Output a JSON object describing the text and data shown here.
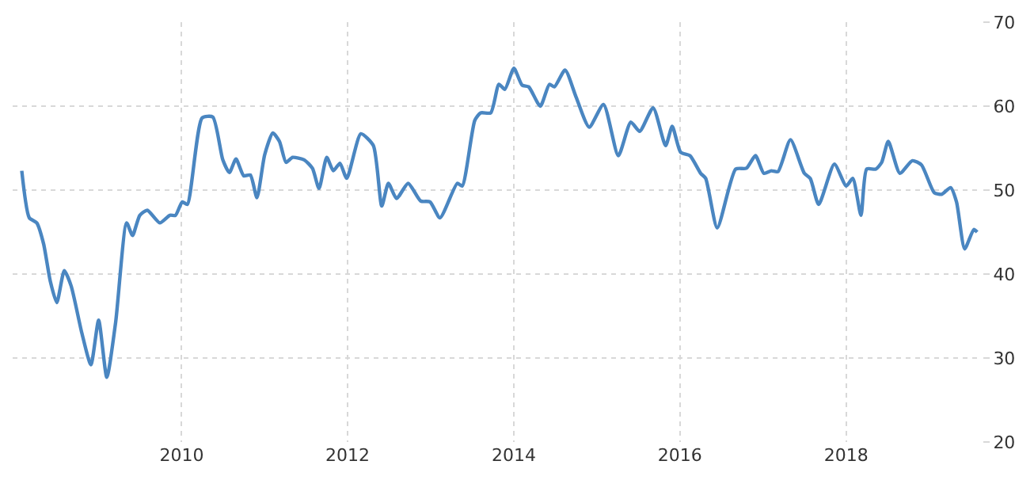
{
  "chart_data": {
    "type": "line",
    "x": [
      "2008-01-29",
      "2008-03-02",
      "2008-04-04",
      "2008-05-04",
      "2008-06-02",
      "2008-07-01",
      "2008-08-03",
      "2008-09-02",
      "2008-10-19",
      "2008-11-28",
      "2009-01-01",
      "2009-02-06",
      "2009-03-17",
      "2009-05-04",
      "2009-05-30",
      "2009-07-01",
      "2009-08-03",
      "2009-09-27",
      "2009-11-10",
      "2009-12-05",
      "2010-01-04",
      "2010-01-26",
      "2010-04-01",
      "2010-05-18",
      "2010-07-01",
      "2010-07-30",
      "2010-08-28",
      "2010-10-01",
      "2010-10-30",
      "2010-11-28",
      "2011-01-01",
      "2011-02-06",
      "2011-03-07",
      "2011-04-05",
      "2011-05-04",
      "2011-06-24",
      "2011-07-30",
      "2011-08-28",
      "2011-10-01",
      "2011-10-30",
      "2011-11-28",
      "2011-12-28",
      "2012-02-28",
      "2012-04-23",
      "2012-05-30",
      "2012-06-28",
      "2012-08-03",
      "2012-09-23",
      "2012-11-17",
      "2012-12-28",
      "2013-02-10",
      "2013-04-27",
      "2013-05-19",
      "2013-07-13",
      "2013-08-08",
      "2013-09-21",
      "2013-10-27",
      "2013-11-22",
      "2014-01-01",
      "2014-02-06",
      "2014-03-07",
      "2014-04-27",
      "2014-06-06",
      "2014-06-28",
      "2014-08-14",
      "2014-10-01",
      "2014-11-28",
      "2015-01-30",
      "2015-04-05",
      "2015-05-30",
      "2015-07-08",
      "2015-09-05",
      "2015-10-30",
      "2015-11-28",
      "2016-01-04",
      "2016-02-14",
      "2016-04-01",
      "2016-04-23",
      "2016-06-13",
      "2016-09-02",
      "2016-10-19",
      "2016-11-28",
      "2017-01-04",
      "2017-02-06",
      "2017-03-07",
      "2017-05-01",
      "2017-07-01",
      "2017-07-27",
      "2017-09-02",
      "2017-11-10",
      "2018-01-01",
      "2018-01-30",
      "2018-03-07",
      "2018-04-01",
      "2018-05-11",
      "2018-06-06",
      "2018-07-05",
      "2018-08-25",
      "2018-10-19",
      "2018-11-28",
      "2019-01-23",
      "2019-02-25",
      "2019-04-05",
      "2019-05-01",
      "2019-06-06",
      "2019-07-16",
      "2019-07-31"
    ],
    "series": [
      {
        "color": "#4a86c1",
        "values": [
          52.3,
          46.7,
          46.1,
          43.6,
          39.2,
          36.6,
          40.4,
          38.6,
          33.0,
          29.2,
          34.5,
          27.7,
          34.3,
          46.1,
          44.6,
          47.0,
          47.6,
          46.1,
          47.0,
          47.0,
          48.6,
          48.3,
          58.6,
          58.7,
          53.6,
          52.1,
          53.7,
          51.7,
          51.8,
          49.1,
          54.2,
          56.8,
          55.8,
          53.3,
          53.9,
          53.6,
          52.6,
          50.2,
          53.9,
          52.3,
          53.2,
          51.4,
          56.7,
          55.3,
          48.1,
          50.8,
          49.0,
          50.8,
          48.7,
          48.6,
          46.7,
          50.8,
          50.5,
          58.3,
          59.2,
          59.2,
          62.6,
          62.0,
          64.5,
          62.5,
          62.3,
          60.0,
          62.6,
          62.3,
          64.3,
          61.1,
          57.5,
          60.2,
          54.1,
          58.1,
          57.0,
          59.8,
          55.3,
          57.6,
          54.5,
          54.1,
          52.0,
          51.4,
          45.5,
          52.5,
          52.6,
          54.1,
          52.0,
          52.3,
          52.2,
          56.0,
          52.0,
          51.4,
          48.3,
          53.1,
          50.5,
          51.4,
          47.0,
          52.5,
          52.5,
          53.3,
          55.8,
          52.0,
          53.5,
          53.0,
          49.7,
          49.5,
          50.3,
          48.6,
          43.0,
          45.3,
          45.0
        ]
      }
    ],
    "xlim": [
      "2007-12-20",
      "2019-08-20"
    ],
    "xticks": [
      {
        "value": "2010-01-01",
        "label": "2010"
      },
      {
        "value": "2012-01-01",
        "label": "2012"
      },
      {
        "value": "2014-01-01",
        "label": "2014"
      },
      {
        "value": "2016-01-01",
        "label": "2016"
      },
      {
        "value": "2018-01-01",
        "label": "2018"
      }
    ],
    "ylim": [
      20,
      70
    ],
    "yticks": [
      20,
      30,
      40,
      50,
      60,
      70
    ],
    "grid": true,
    "legend": false,
    "marker": "none",
    "line_style": "solid"
  }
}
